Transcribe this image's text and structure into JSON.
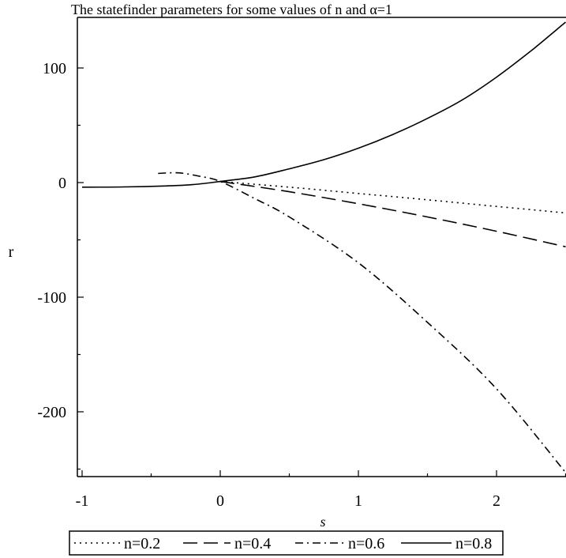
{
  "chart_data": {
    "type": "line",
    "title": "The statefinder parameters for some values of n and α=1",
    "xlabel": "s",
    "ylabel": "r",
    "xlim": [
      -1.05,
      2.5
    ],
    "ylim": [
      -257,
      142
    ],
    "x_ticks": [
      -1,
      0,
      1,
      2
    ],
    "x_tick_labels": [
      "-1",
      "0",
      "1",
      "2"
    ],
    "y_ticks": [
      -200,
      -100,
      0,
      100
    ],
    "y_tick_labels": [
      "-200",
      "-100",
      "0",
      "100"
    ],
    "grid": false,
    "legend_position": "bottom",
    "series": [
      {
        "name": "n=0.2",
        "style": "dotted",
        "points": [
          [
            0,
            1
          ],
          [
            0.5,
            -4
          ],
          [
            1,
            -9.5
          ],
          [
            1.5,
            -15
          ],
          [
            2,
            -20.8
          ],
          [
            2.5,
            -26.5
          ]
        ]
      },
      {
        "name": "n=0.4",
        "style": "dashed",
        "points": [
          [
            0,
            1
          ],
          [
            0.5,
            -8
          ],
          [
            1,
            -18.5
          ],
          [
            1.5,
            -30
          ],
          [
            2,
            -42.5
          ],
          [
            2.5,
            -56
          ]
        ]
      },
      {
        "name": "n=0.6",
        "style": "dashdot",
        "points": [
          [
            -0.45,
            8
          ],
          [
            -0.3,
            8.5
          ],
          [
            -0.15,
            5.5
          ],
          [
            0,
            1
          ],
          [
            0.25,
            -14
          ],
          [
            0.5,
            -30
          ],
          [
            1,
            -70
          ],
          [
            1.5,
            -122
          ],
          [
            2,
            -180
          ],
          [
            2.5,
            -253
          ]
        ]
      },
      {
        "name": "n=0.8",
        "style": "solid",
        "points": [
          [
            -1,
            -4
          ],
          [
            -0.7,
            -3.8
          ],
          [
            -0.4,
            -3
          ],
          [
            -0.2,
            -1.8
          ],
          [
            0,
            1
          ],
          [
            0.25,
            5
          ],
          [
            0.5,
            12
          ],
          [
            0.75,
            20
          ],
          [
            1,
            30
          ],
          [
            1.25,
            42
          ],
          [
            1.5,
            56
          ],
          [
            1.75,
            72
          ],
          [
            2,
            92
          ],
          [
            2.25,
            115
          ],
          [
            2.5,
            140
          ]
        ]
      }
    ]
  }
}
